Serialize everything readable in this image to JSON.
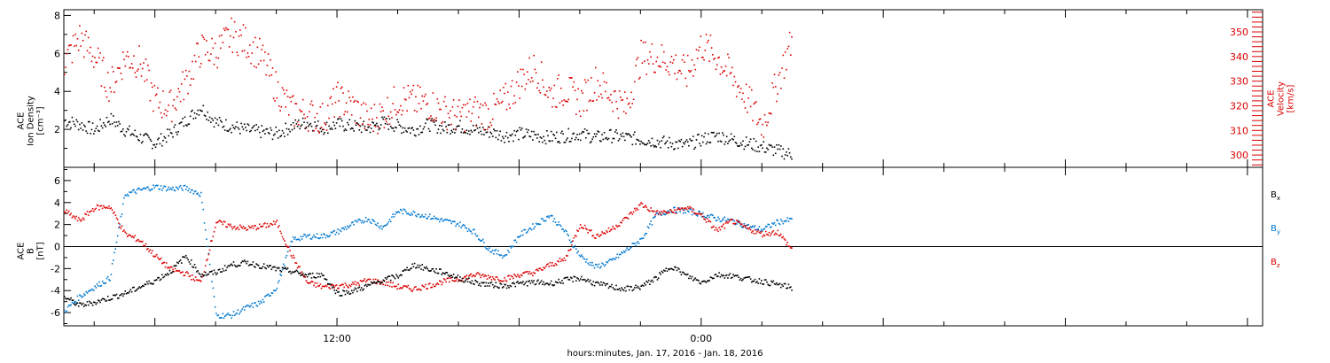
{
  "chart_data": [
    {
      "type": "scatter",
      "panel": "top",
      "ylabel_line1": "ACE",
      "ylabel_line2": "Ion Density",
      "ylabel_units": "[cm⁻³]",
      "ylabel_right_line1": "ACE",
      "ylabel_right_line2": "Velocity",
      "ylabel_right_units": "[km/s]",
      "ylim": [
        0,
        8.3
      ],
      "yticks": [
        2,
        4,
        6,
        8
      ],
      "ylim_right": [
        295,
        359
      ],
      "yticks_right": [
        300,
        310,
        320,
        330,
        340,
        350
      ],
      "xlim_hours": [
        3,
        42.5
      ],
      "series": [
        {
          "color": "#000000",
          "x_hours": [
            3.0,
            3.5,
            4.0,
            4.5,
            5.0,
            5.5,
            6.0,
            6.5,
            7.0,
            7.5,
            8.0,
            8.5,
            9.0,
            9.5,
            10.0,
            10.5,
            11.0,
            11.5,
            12.0,
            12.5,
            13.0,
            13.5,
            14.0,
            14.5,
            15.0,
            15.5,
            16.0,
            16.5,
            17.0,
            17.5,
            18.0,
            18.5,
            19.0,
            19.5,
            20.0,
            20.5,
            21.0,
            21.5,
            22.0,
            22.5,
            23.0,
            23.5,
            24.0,
            24.5,
            25.0,
            25.5,
            26.0,
            26.5,
            27.0
          ],
          "values": [
            2.5,
            2.3,
            2.0,
            2.6,
            2.0,
            1.6,
            1.3,
            1.8,
            2.5,
            3.2,
            2.4,
            2.2,
            2.0,
            1.9,
            1.8,
            2.2,
            2.4,
            2.1,
            2.3,
            2.2,
            2.1,
            2.4,
            2.2,
            2.0,
            2.3,
            2.1,
            2.2,
            2.0,
            1.9,
            1.7,
            1.8,
            1.7,
            1.6,
            1.7,
            1.8,
            1.6,
            1.7,
            1.6,
            1.5,
            1.4,
            1.3,
            1.2,
            1.5,
            1.7,
            1.5,
            1.3,
            1.1,
            0.9,
            0.7
          ]
        },
        {
          "color": "#dd0000",
          "axis": "right",
          "x_hours": [
            3.0,
            3.5,
            4.0,
            4.5,
            5.0,
            5.5,
            6.0,
            6.5,
            7.0,
            7.5,
            8.0,
            8.5,
            9.0,
            9.5,
            10.0,
            10.5,
            11.0,
            11.5,
            12.0,
            12.5,
            13.0,
            13.5,
            14.0,
            14.5,
            15.0,
            15.5,
            16.0,
            16.5,
            17.0,
            17.5,
            18.0,
            18.5,
            19.0,
            19.5,
            20.0,
            20.5,
            21.0,
            21.5,
            22.0,
            22.5,
            23.0,
            23.5,
            24.0,
            24.5,
            25.0,
            25.5,
            26.0,
            26.5,
            27.0
          ],
          "values": [
            338,
            348,
            340,
            328,
            340,
            338,
            322,
            320,
            330,
            343,
            342,
            349,
            346,
            340,
            327,
            318,
            317,
            315,
            323,
            320,
            314,
            317,
            323,
            322,
            321,
            318,
            316,
            318,
            317,
            322,
            330,
            336,
            325,
            327,
            322,
            330,
            325,
            319,
            340,
            340,
            338,
            333,
            345,
            340,
            332,
            323,
            312,
            330,
            348
          ]
        }
      ]
    },
    {
      "type": "scatter",
      "panel": "bottom",
      "ylabel_line1": "ACE",
      "ylabel_line2": "B",
      "ylabel_units": "[nT]",
      "ylim": [
        -7.2,
        7.2
      ],
      "yticks": [
        -6,
        -4,
        -2,
        0,
        2,
        4,
        6
      ],
      "xlim_hours": [
        3,
        42.5
      ],
      "xtick_labels": [
        "12:00",
        "0:00"
      ],
      "xtick_hours": [
        12,
        24
      ],
      "xlabel": "hours:minutes, Jan. 17, 2016 - Jan. 18, 2016",
      "series": [
        {
          "name": "Bx",
          "color": "#000000",
          "x_hours": [
            3.0,
            3.5,
            4.0,
            4.5,
            5.0,
            5.5,
            6.0,
            6.5,
            7.0,
            7.5,
            8.0,
            8.5,
            9.0,
            9.5,
            10.0,
            10.5,
            11.0,
            11.5,
            12.0,
            12.5,
            13.0,
            13.5,
            14.0,
            14.5,
            15.0,
            15.5,
            16.0,
            16.5,
            17.0,
            17.5,
            18.0,
            18.5,
            19.0,
            19.5,
            20.0,
            20.5,
            21.0,
            21.5,
            22.0,
            22.5,
            23.0,
            23.5,
            24.0,
            24.5,
            25.0,
            25.5,
            26.0,
            26.5,
            27.0
          ],
          "values": [
            -4.5,
            -5.3,
            -5.0,
            -4.6,
            -4.2,
            -3.6,
            -3.0,
            -2.2,
            -0.8,
            -2.5,
            -2.3,
            -1.6,
            -1.4,
            -1.7,
            -2.0,
            -2.2,
            -2.6,
            -2.5,
            -4.2,
            -4.0,
            -3.5,
            -3.0,
            -2.6,
            -1.6,
            -2.0,
            -2.3,
            -2.8,
            -3.2,
            -3.4,
            -3.5,
            -3.3,
            -3.2,
            -3.3,
            -3.0,
            -2.8,
            -3.3,
            -3.6,
            -3.8,
            -3.6,
            -2.8,
            -1.7,
            -2.6,
            -3.2,
            -2.5,
            -2.6,
            -2.9,
            -3.1,
            -3.4,
            -3.7
          ]
        },
        {
          "name": "By",
          "color": "#0078d0",
          "x_hours": [
            3.0,
            3.5,
            4.0,
            4.5,
            5.0,
            5.5,
            6.0,
            6.5,
            7.0,
            7.5,
            8.0,
            8.5,
            9.0,
            9.5,
            10.0,
            10.5,
            11.0,
            11.5,
            12.0,
            12.5,
            13.0,
            13.5,
            14.0,
            14.5,
            15.0,
            15.5,
            16.0,
            16.5,
            17.0,
            17.5,
            18.0,
            18.5,
            19.0,
            19.5,
            20.0,
            20.5,
            21.0,
            21.5,
            22.0,
            22.5,
            23.0,
            23.5,
            24.0,
            24.5,
            25.0,
            25.5,
            26.0,
            26.5,
            27.0
          ],
          "values": [
            -5.8,
            -4.5,
            -3.6,
            -2.8,
            4.8,
            5.2,
            5.5,
            5.3,
            5.4,
            4.8,
            -6.2,
            -6.2,
            -5.5,
            -5.0,
            -3.6,
            0.7,
            1.0,
            1.0,
            1.4,
            2.1,
            2.6,
            1.8,
            3.3,
            3.1,
            2.8,
            2.4,
            2.1,
            1.4,
            -0.2,
            -0.8,
            1.1,
            2.0,
            2.9,
            1.4,
            -0.8,
            -1.8,
            -1.3,
            -0.3,
            0.7,
            2.9,
            3.4,
            3.3,
            3.0,
            2.6,
            2.4,
            1.9,
            1.6,
            2.3,
            2.5
          ]
        },
        {
          "name": "Bz",
          "color": "#dd0000",
          "x_hours": [
            3.0,
            3.5,
            4.0,
            4.5,
            5.0,
            5.5,
            6.0,
            6.5,
            7.0,
            7.5,
            8.0,
            8.5,
            9.0,
            9.5,
            10.0,
            10.5,
            11.0,
            11.5,
            12.0,
            12.5,
            13.0,
            13.5,
            14.0,
            14.5,
            15.0,
            15.5,
            16.0,
            16.5,
            17.0,
            17.5,
            18.0,
            18.5,
            19.0,
            19.5,
            20.0,
            20.5,
            21.0,
            21.5,
            22.0,
            22.5,
            23.0,
            23.5,
            24.0,
            24.5,
            25.0,
            25.5,
            26.0,
            26.5,
            27.0
          ],
          "values": [
            3.3,
            2.4,
            3.6,
            3.7,
            1.2,
            0.6,
            -0.8,
            -2.0,
            -2.4,
            -3.2,
            2.3,
            1.9,
            1.7,
            1.9,
            2.2,
            -0.8,
            -3.2,
            -3.6,
            -3.5,
            -3.4,
            -3.0,
            -3.2,
            -3.6,
            -3.8,
            -3.5,
            -3.1,
            -2.9,
            -2.5,
            -2.7,
            -2.9,
            -2.5,
            -2.3,
            -1.6,
            -1.1,
            2.1,
            1.0,
            1.6,
            2.6,
            3.9,
            3.1,
            3.2,
            3.6,
            2.9,
            1.5,
            2.4,
            1.7,
            1.2,
            1.4,
            -0.3
          ]
        }
      ]
    }
  ],
  "legend": {
    "bx": {
      "base": "B",
      "sub": "x"
    },
    "by": {
      "base": "B",
      "sub": "y"
    },
    "bz": {
      "base": "B",
      "sub": "z"
    }
  }
}
